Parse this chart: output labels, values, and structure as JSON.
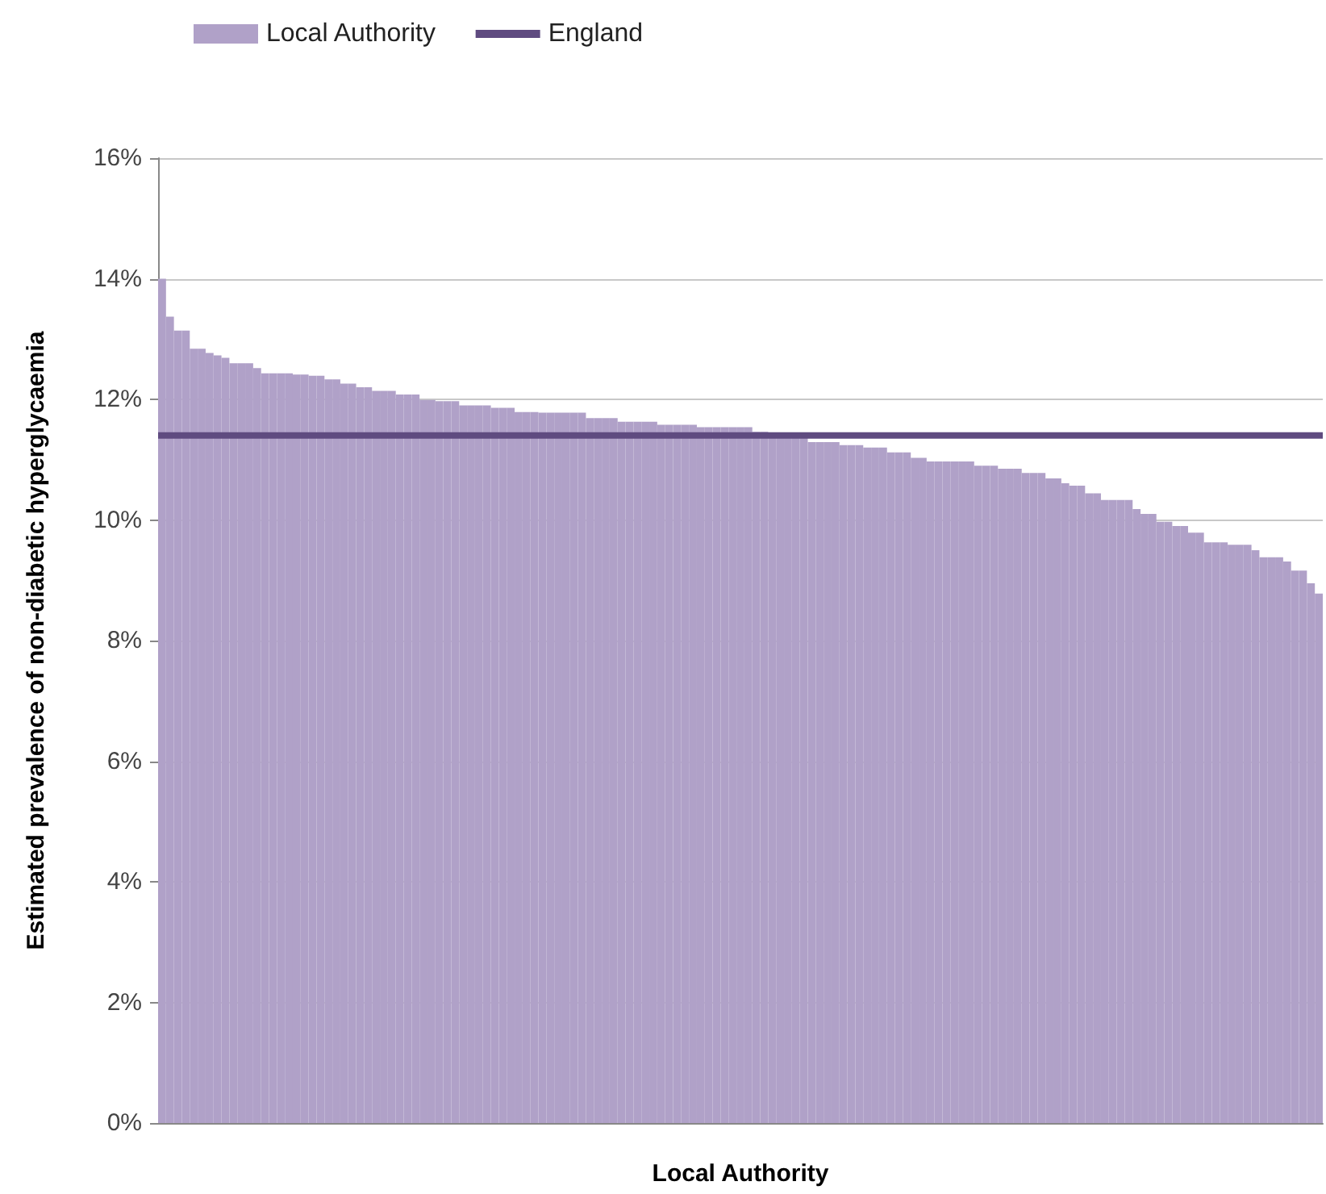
{
  "chart_data": {
    "type": "bar",
    "xlabel": "Local Authority",
    "ylabel": "Estimated prevalence of non-diabetic hyperglycaemia",
    "categories": [
      null,
      null,
      null,
      null,
      null,
      null,
      null,
      null,
      null,
      null,
      null,
      null,
      null,
      null,
      null,
      null,
      null,
      null,
      null,
      null,
      null,
      null,
      null,
      null,
      null,
      null,
      null,
      null,
      null,
      null,
      null,
      null,
      null,
      null,
      null,
      null,
      null,
      null,
      null,
      null,
      null,
      null,
      null,
      null,
      null,
      null,
      null,
      null,
      null,
      null,
      null,
      null,
      null,
      null,
      null,
      null,
      null,
      null,
      null,
      null,
      null,
      null,
      null,
      null,
      null,
      null,
      null,
      null,
      null,
      null,
      null,
      null,
      null,
      null,
      null,
      null,
      null,
      null,
      null,
      null,
      null,
      null,
      null,
      null,
      null,
      null,
      null,
      null,
      null,
      null,
      null,
      null,
      null,
      null,
      null,
      null,
      null,
      null,
      null,
      null,
      null,
      null,
      null,
      null,
      null,
      null,
      null,
      null,
      null,
      null,
      null,
      null,
      null,
      null,
      null,
      null,
      null,
      null,
      null,
      null,
      null,
      null,
      null,
      null,
      null,
      null,
      null,
      null,
      null,
      null,
      null,
      null,
      null,
      null,
      null,
      null,
      null,
      null,
      null,
      null,
      null,
      null,
      null,
      null,
      null,
      null,
      null
    ],
    "series": [
      {
        "name": "Local Authority",
        "color": "#b0a1c8",
        "values": [
          14.0,
          13.37,
          13.14,
          13.14,
          12.84,
          12.84,
          12.77,
          12.73,
          12.69,
          12.6,
          12.6,
          12.6,
          12.52,
          12.43,
          12.43,
          12.43,
          12.43,
          12.41,
          12.41,
          12.39,
          12.39,
          12.33,
          12.33,
          12.26,
          12.26,
          12.2,
          12.2,
          12.14,
          12.14,
          12.14,
          12.08,
          12.08,
          12.08,
          11.99,
          11.99,
          11.97,
          11.97,
          11.97,
          11.9,
          11.9,
          11.9,
          11.9,
          11.86,
          11.86,
          11.86,
          11.79,
          11.79,
          11.79,
          11.78,
          11.78,
          11.78,
          11.78,
          11.78,
          11.78,
          11.69,
          11.69,
          11.69,
          11.69,
          11.63,
          11.63,
          11.63,
          11.63,
          11.63,
          11.58,
          11.58,
          11.58,
          11.58,
          11.58,
          11.54,
          11.54,
          11.54,
          11.54,
          11.54,
          11.54,
          11.54,
          11.46,
          11.46,
          11.42,
          11.42,
          11.42,
          11.42,
          11.42,
          11.29,
          11.29,
          11.29,
          11.29,
          11.24,
          11.24,
          11.24,
          11.2,
          11.2,
          11.2,
          11.12,
          11.12,
          11.12,
          11.03,
          11.03,
          10.97,
          10.97,
          10.97,
          10.97,
          10.97,
          10.97,
          10.9,
          10.9,
          10.9,
          10.85,
          10.85,
          10.85,
          10.78,
          10.78,
          10.78,
          10.69,
          10.69,
          10.61,
          10.57,
          10.57,
          10.44,
          10.44,
          10.33,
          10.33,
          10.33,
          10.33,
          10.18,
          10.1,
          10.1,
          9.97,
          9.97,
          9.9,
          9.9,
          9.79,
          9.79,
          9.63,
          9.63,
          9.63,
          9.59,
          9.59,
          9.59,
          9.5,
          9.38,
          9.38,
          9.38,
          9.31,
          9.16,
          9.16,
          8.95,
          8.78
        ]
      }
    ],
    "ref_lines": [
      {
        "axis": "y",
        "value": 11.4,
        "label": "England",
        "color": "#5f4b80",
        "line_style": "solid"
      }
    ],
    "ylim": [
      0,
      16
    ],
    "yticks": [
      {
        "value": 0,
        "label": "0%"
      },
      {
        "value": 2,
        "label": "2%"
      },
      {
        "value": 4,
        "label": "4%"
      },
      {
        "value": 6,
        "label": "6%"
      },
      {
        "value": 8,
        "label": "8%"
      },
      {
        "value": 10,
        "label": "10%"
      },
      {
        "value": 12,
        "label": "12%"
      },
      {
        "value": 14,
        "label": "14%"
      },
      {
        "value": 16,
        "label": "16%"
      }
    ],
    "grid": "y",
    "legend": "top left"
  }
}
